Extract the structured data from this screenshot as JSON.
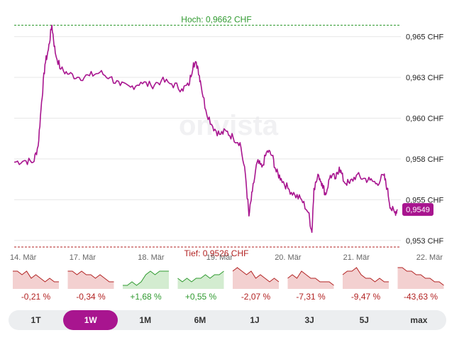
{
  "watermark": "onvista",
  "chart_data": {
    "type": "line",
    "title": "",
    "xlabel": "",
    "ylabel": "",
    "ylim": [
      0.9526,
      0.9667
    ],
    "y_ticks": [
      0.953,
      0.9555,
      0.958,
      0.9605,
      0.963,
      0.9655
    ],
    "y_tick_labels": [
      "0,953 CHF",
      "0,955 CHF",
      "0,958 CHF",
      "0,960 CHF",
      "0,963 CHF",
      "0,965 CHF"
    ],
    "x_tick_labels": [
      "14. Mär",
      "17. Mär",
      "18. Mär",
      "19. Mär",
      "20. Mär",
      "21. Mär",
      "22. Mär"
    ],
    "x_tick_positions": [
      0,
      1,
      2,
      3,
      4,
      5,
      6
    ],
    "xlim": [
      0,
      5.65
    ],
    "high": {
      "value": 0.9662,
      "label": "Hoch: 0,9662 CHF"
    },
    "low": {
      "value": 0.9526,
      "label": "Tief: 0,9526 CHF"
    },
    "last": {
      "value": 0.9549,
      "label": "0,9549"
    },
    "grid": true,
    "series": [
      {
        "color": "#a8158f",
        "points": [
          [
            0.0,
            0.9578
          ],
          [
            0.15,
            0.9579
          ],
          [
            0.28,
            0.9578
          ],
          [
            0.35,
            0.9588
          ],
          [
            0.4,
            0.9615
          ],
          [
            0.45,
            0.9638
          ],
          [
            0.5,
            0.9647
          ],
          [
            0.55,
            0.9662
          ],
          [
            0.6,
            0.9645
          ],
          [
            0.68,
            0.9635
          ],
          [
            0.8,
            0.9632
          ],
          [
            0.95,
            0.963
          ],
          [
            1.1,
            0.9631
          ],
          [
            1.25,
            0.9633
          ],
          [
            1.4,
            0.963
          ],
          [
            1.55,
            0.9625
          ],
          [
            1.7,
            0.9624
          ],
          [
            1.85,
            0.9627
          ],
          [
            2.0,
            0.9625
          ],
          [
            2.15,
            0.9628
          ],
          [
            2.3,
            0.9626
          ],
          [
            2.45,
            0.9623
          ],
          [
            2.55,
            0.9625
          ],
          [
            2.62,
            0.9639
          ],
          [
            2.68,
            0.9637
          ],
          [
            2.72,
            0.9628
          ],
          [
            2.8,
            0.961
          ],
          [
            2.9,
            0.96
          ],
          [
            3.0,
            0.9595
          ],
          [
            3.1,
            0.9597
          ],
          [
            3.2,
            0.9593
          ],
          [
            3.3,
            0.959
          ],
          [
            3.38,
            0.957
          ],
          [
            3.43,
            0.9545
          ],
          [
            3.48,
            0.956
          ],
          [
            3.55,
            0.9578
          ],
          [
            3.62,
            0.9575
          ],
          [
            3.7,
            0.9585
          ],
          [
            3.77,
            0.9582
          ],
          [
            3.83,
            0.9572
          ],
          [
            3.9,
            0.9568
          ],
          [
            4.0,
            0.9562
          ],
          [
            4.1,
            0.9558
          ],
          [
            4.2,
            0.9555
          ],
          [
            4.3,
            0.9547
          ],
          [
            4.35,
            0.9535
          ],
          [
            4.38,
            0.9562
          ],
          [
            4.45,
            0.957
          ],
          [
            4.5,
            0.9565
          ],
          [
            4.55,
            0.9558
          ],
          [
            4.62,
            0.957
          ],
          [
            4.7,
            0.9568
          ],
          [
            4.75,
            0.9575
          ],
          [
            4.82,
            0.9566
          ],
          [
            4.9,
            0.9565
          ],
          [
            5.0,
            0.957
          ],
          [
            5.1,
            0.9568
          ],
          [
            5.2,
            0.9567
          ],
          [
            5.3,
            0.9565
          ],
          [
            5.4,
            0.957
          ],
          [
            5.45,
            0.9562
          ],
          [
            5.5,
            0.955
          ],
          [
            5.56,
            0.9547
          ],
          [
            5.6,
            0.9549
          ]
        ]
      }
    ],
    "performance": [
      {
        "label": "-0,21 %",
        "trend": "down",
        "values": [
          5,
          5,
          4,
          5,
          3,
          4,
          3,
          2,
          3,
          2,
          2
        ]
      },
      {
        "label": "-0,34 %",
        "trend": "down",
        "values": [
          5,
          5,
          4,
          5,
          4,
          4,
          3,
          4,
          3,
          2,
          2
        ]
      },
      {
        "label": "+1,68 %",
        "trend": "up",
        "values": [
          1,
          1,
          2,
          1,
          2,
          4,
          5,
          4,
          5,
          5,
          5
        ]
      },
      {
        "label": "+0,55 %",
        "trend": "up",
        "values": [
          3,
          2,
          3,
          2,
          3,
          3,
          4,
          3,
          4,
          4,
          5
        ]
      },
      {
        "label": "-2,07 %",
        "trend": "down",
        "values": [
          5,
          6,
          5,
          4,
          5,
          3,
          4,
          3,
          2,
          3,
          2
        ]
      },
      {
        "label": "-7,31 %",
        "trend": "down",
        "values": [
          3,
          4,
          3,
          5,
          4,
          3,
          3,
          2,
          2,
          2,
          1
        ]
      },
      {
        "label": "-9,47 %",
        "trend": "down",
        "values": [
          4,
          5,
          5,
          6,
          4,
          3,
          3,
          2,
          3,
          2,
          2
        ]
      },
      {
        "label": "-43,63 %",
        "trend": "down",
        "values": [
          6,
          6,
          5,
          5,
          4,
          4,
          3,
          3,
          2,
          2,
          1
        ]
      }
    ]
  },
  "tabs": [
    {
      "label": "1T",
      "active": false
    },
    {
      "label": "1W",
      "active": true
    },
    {
      "label": "1M",
      "active": false
    },
    {
      "label": "6M",
      "active": false
    },
    {
      "label": "1J",
      "active": false
    },
    {
      "label": "3J",
      "active": false
    },
    {
      "label": "5J",
      "active": false
    },
    {
      "label": "max",
      "active": false
    }
  ],
  "colors": {
    "line": "#a8158f",
    "high": "#2f9a2f",
    "low": "#b22222",
    "down_fill": "#f3d0d0",
    "up_fill": "#d3ecd0"
  }
}
